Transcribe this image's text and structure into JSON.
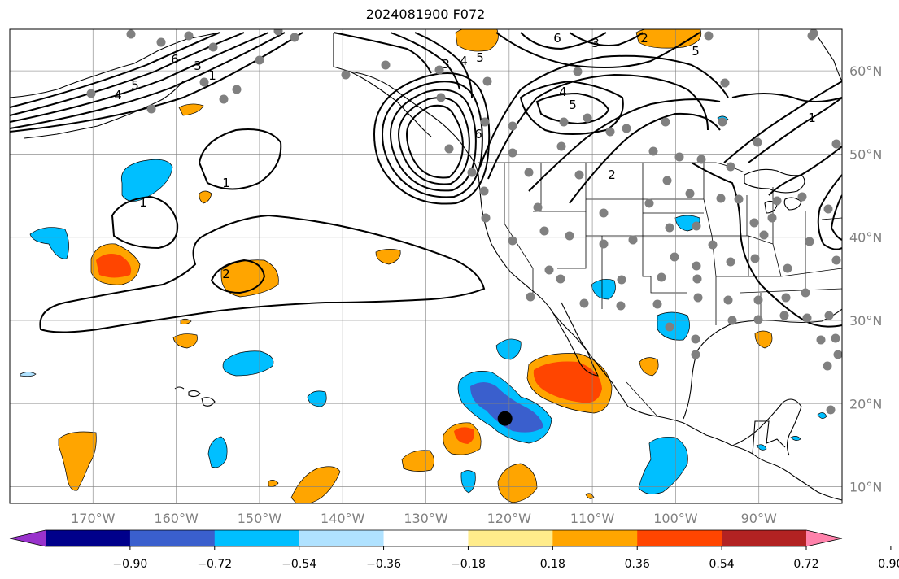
{
  "title": "2024081900 F072",
  "map": {
    "lon_range": [
      -180,
      -80
    ],
    "lat_range": [
      8,
      65
    ],
    "lon_ticks": [
      {
        "value": -170,
        "label": "170°W"
      },
      {
        "value": -160,
        "label": "160°W"
      },
      {
        "value": -150,
        "label": "150°W"
      },
      {
        "value": -140,
        "label": "140°W"
      },
      {
        "value": -130,
        "label": "130°W"
      },
      {
        "value": -120,
        "label": "120°W"
      },
      {
        "value": -110,
        "label": "110°W"
      },
      {
        "value": -100,
        "label": "100°W"
      },
      {
        "value": -90,
        "label": "90°W"
      }
    ],
    "lat_ticks": [
      {
        "value": 60,
        "label": "60°N"
      },
      {
        "value": 50,
        "label": "50°N"
      },
      {
        "value": 40,
        "label": "40°N"
      },
      {
        "value": 30,
        "label": "30°N"
      },
      {
        "value": 20,
        "label": "20°N"
      },
      {
        "value": 10,
        "label": "10°N"
      }
    ],
    "grid": true,
    "marker": {
      "lon": -120.5,
      "lat": 18.2,
      "color": "#000000"
    },
    "station_color": "#808080",
    "contour_color": "#000000"
  },
  "colorbar": {
    "ticks": [
      "−0.90",
      "−0.72",
      "−0.54",
      "−0.36",
      "−0.18",
      "0.18",
      "0.36",
      "0.54",
      "0.72",
      "0.90"
    ],
    "colors": [
      "#9932cc",
      "#00008b",
      "#3a5fcd",
      "#00bfff",
      "#b0e2ff",
      "#ffffff",
      "#ffec8b",
      "#ffa500",
      "#ff4500",
      "#b22222",
      "#ff82ab"
    ],
    "extend": "both"
  },
  "contour_labels": [
    "1",
    "2",
    "3",
    "4",
    "5",
    "6"
  ]
}
